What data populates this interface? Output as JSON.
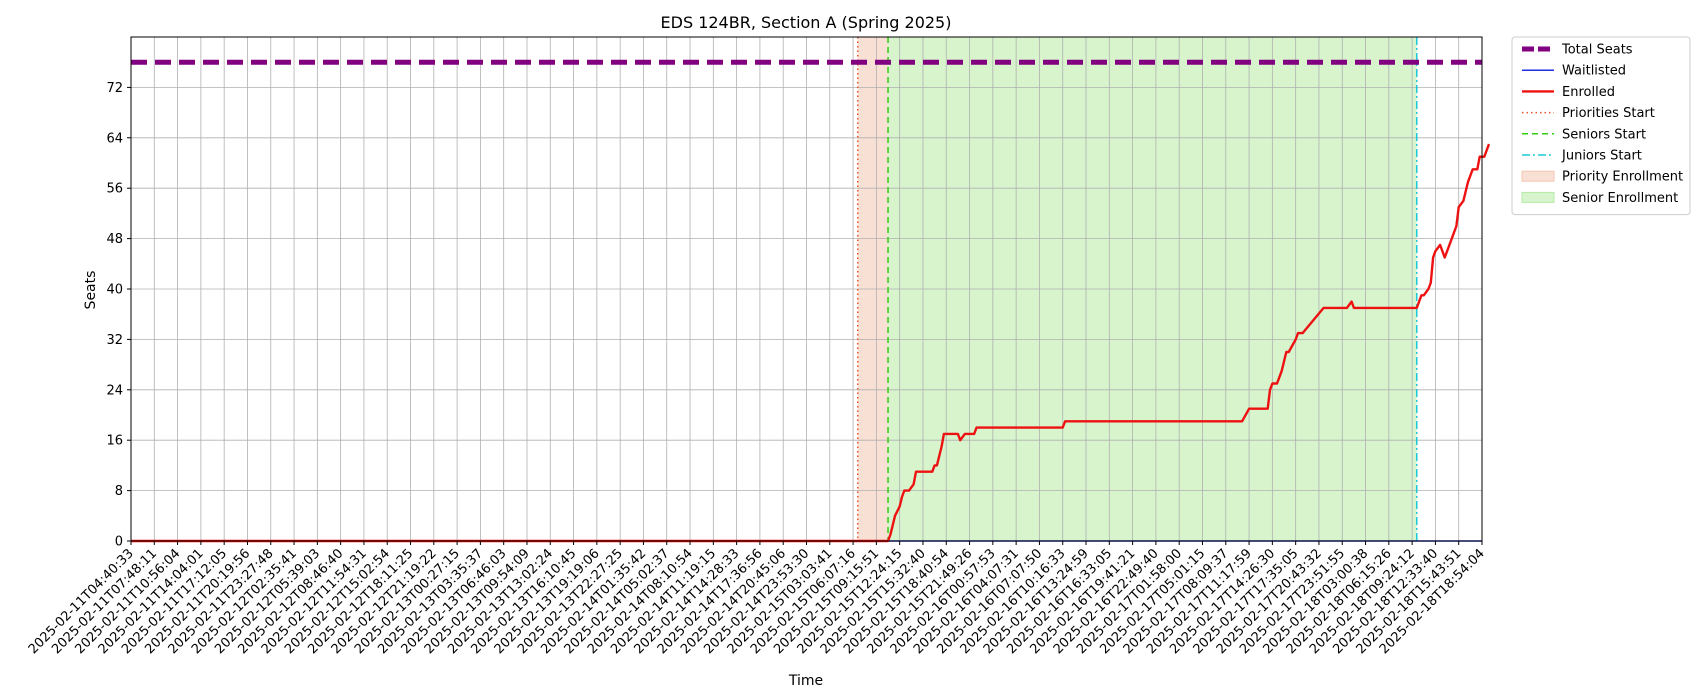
{
  "chart_data": {
    "type": "line",
    "title": "EDS 124BR, Section A (Spring 2025)",
    "xlabel": "Time",
    "ylabel": "Seats",
    "ylim": [
      0,
      80
    ],
    "yticks": [
      0,
      8,
      16,
      24,
      32,
      40,
      48,
      56,
      64,
      72
    ],
    "grid": true,
    "legend_position": "outside-top-right",
    "x_tick_labels": [
      "2025-02-11T04:40:33",
      "2025-02-11T07:48:11",
      "2025-02-11T10:56:04",
      "2025-02-11T14:04:01",
      "2025-02-11T17:12:05",
      "2025-02-11T20:19:56",
      "2025-02-11T23:27:48",
      "2025-02-12T02:35:41",
      "2025-02-12T05:39:03",
      "2025-02-12T08:46:40",
      "2025-02-12T11:54:31",
      "2025-02-12T15:02:54",
      "2025-02-12T18:11:25",
      "2025-02-12T21:19:22",
      "2025-02-13T00:27:15",
      "2025-02-13T03:35:37",
      "2025-02-13T06:46:03",
      "2025-02-13T09:54:09",
      "2025-02-13T13:02:24",
      "2025-02-13T16:10:45",
      "2025-02-13T19:19:06",
      "2025-02-13T22:27:25",
      "2025-02-14T01:35:42",
      "2025-02-14T05:02:37",
      "2025-02-14T08:10:54",
      "2025-02-14T11:19:15",
      "2025-02-14T14:28:33",
      "2025-02-14T17:36:56",
      "2025-02-14T20:45:06",
      "2025-02-14T23:53:30",
      "2025-02-15T03:03:41",
      "2025-02-15T06:07:16",
      "2025-02-15T09:15:51",
      "2025-02-15T12:24:15",
      "2025-02-15T15:32:40",
      "2025-02-15T18:40:54",
      "2025-02-15T21:49:26",
      "2025-02-16T00:57:53",
      "2025-02-16T04:07:31",
      "2025-02-16T07:07:50",
      "2025-02-16T10:16:33",
      "2025-02-16T13:24:59",
      "2025-02-16T16:33:05",
      "2025-02-16T19:41:21",
      "2025-02-16T22:49:40",
      "2025-02-17T01:58:00",
      "2025-02-17T05:01:15",
      "2025-02-17T08:09:37",
      "2025-02-17T11:17:59",
      "2025-02-17T14:26:30",
      "2025-02-17T17:35:05",
      "2025-02-17T20:43:32",
      "2025-02-17T23:51:55",
      "2025-02-18T03:00:38",
      "2025-02-18T06:15:26",
      "2025-02-18T09:24:12",
      "2025-02-18T12:33:40",
      "2025-02-18T15:43:51",
      "2025-02-18T18:54:04"
    ],
    "regions": [
      {
        "name": "Priority Enrollment",
        "start": "2025-02-15T06:07:16",
        "end": "2025-02-15T09:15:51",
        "start_tick_offset": 0.2,
        "end_tick_offset": 0.5,
        "color": "#f4c6b3"
      },
      {
        "name": "Senior Enrollment",
        "start": "2025-02-15T09:15:51",
        "end": "2025-02-18T09:24:12",
        "start_tick_offset": 0.5,
        "end_tick_offset": 0.2,
        "color": "#b6eba4"
      }
    ],
    "vlines": [
      {
        "name": "Priorities Start",
        "tick": "2025-02-15T06:07:16",
        "tick_offset": 0.2,
        "color": "#e8542a",
        "style": "dotted"
      },
      {
        "name": "Seniors Start",
        "tick": "2025-02-15T09:15:51",
        "tick_offset": 0.5,
        "color": "#33cc11",
        "style": "dashed"
      },
      {
        "name": "Juniors Start",
        "tick": "2025-02-18T09:24:12",
        "tick_offset": 0.2,
        "color": "#1ac8d6",
        "style": "dashdot"
      }
    ],
    "series": [
      {
        "name": "Total Seats",
        "color": "#800080",
        "style": "dashed-thick",
        "y": 76
      },
      {
        "name": "Waitlisted",
        "color": "#1f2ee0",
        "style": "solid-thin",
        "y": 0
      },
      {
        "name": "Enrolled",
        "color": "#ee1111",
        "style": "solid-thick",
        "points": [
          [
            0,
            0
          ],
          [
            32.5,
            0
          ],
          [
            32.6,
            1
          ],
          [
            32.7,
            2.5
          ],
          [
            32.8,
            4
          ],
          [
            33.0,
            5.5
          ],
          [
            33.1,
            7
          ],
          [
            33.2,
            8
          ],
          [
            33.4,
            8
          ],
          [
            33.6,
            9
          ],
          [
            33.7,
            11
          ],
          [
            34.1,
            11
          ],
          [
            34.4,
            11
          ],
          [
            34.5,
            12
          ],
          [
            34.6,
            12
          ],
          [
            34.8,
            15
          ],
          [
            34.9,
            17
          ],
          [
            35.5,
            17
          ],
          [
            35.6,
            16
          ],
          [
            35.8,
            17
          ],
          [
            36.2,
            17
          ],
          [
            36.3,
            18
          ],
          [
            39.0,
            18
          ],
          [
            40.0,
            18
          ],
          [
            40.1,
            19
          ],
          [
            45,
            19
          ],
          [
            47.7,
            19
          ],
          [
            48.0,
            21
          ],
          [
            48.8,
            21
          ],
          [
            48.9,
            24
          ],
          [
            49.0,
            25
          ],
          [
            49.2,
            25
          ],
          [
            49.4,
            27
          ],
          [
            49.6,
            30
          ],
          [
            49.7,
            30
          ],
          [
            50.0,
            32
          ],
          [
            50.1,
            33
          ],
          [
            50.3,
            33
          ],
          [
            51.2,
            37
          ],
          [
            52.2,
            37
          ],
          [
            52.4,
            38
          ],
          [
            52.5,
            37
          ],
          [
            55.2,
            37
          ],
          [
            55.4,
            39
          ],
          [
            55.5,
            39
          ],
          [
            55.7,
            40
          ],
          [
            55.8,
            41
          ],
          [
            55.9,
            45
          ],
          [
            56.0,
            46
          ],
          [
            56.2,
            47
          ],
          [
            56.4,
            45
          ],
          [
            56.5,
            46
          ],
          [
            56.9,
            50
          ],
          [
            57.0,
            53
          ],
          [
            57.2,
            54
          ],
          [
            57.4,
            57
          ],
          [
            57.6,
            59
          ],
          [
            57.8,
            59
          ],
          [
            57.9,
            61
          ],
          [
            58.1,
            61
          ],
          [
            58.3,
            63
          ]
        ]
      }
    ],
    "legend": [
      {
        "label": "Total Seats",
        "kind": "line",
        "color": "#800080",
        "style": "dashed-thick"
      },
      {
        "label": "Waitlisted",
        "kind": "line",
        "color": "#1f2ee0",
        "style": "solid-thin"
      },
      {
        "label": "Enrolled",
        "kind": "line",
        "color": "#ee1111",
        "style": "solid-thick"
      },
      {
        "label": "Priorities Start",
        "kind": "line",
        "color": "#e8542a",
        "style": "dotted"
      },
      {
        "label": "Seniors Start",
        "kind": "line",
        "color": "#33cc11",
        "style": "dashed"
      },
      {
        "label": "Juniors Start",
        "kind": "line",
        "color": "#1ac8d6",
        "style": "dashdot"
      },
      {
        "label": "Priority Enrollment",
        "kind": "patch",
        "color": "#f4c6b3"
      },
      {
        "label": "Senior Enrollment",
        "kind": "patch",
        "color": "#b6eba4"
      }
    ]
  }
}
